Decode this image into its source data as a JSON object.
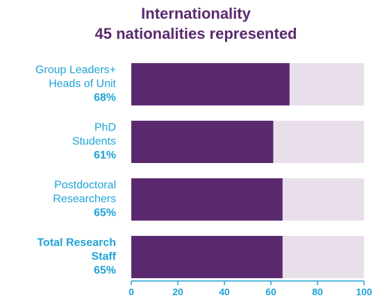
{
  "chart_data": {
    "type": "bar",
    "orientation": "horizontal",
    "title": [
      "Internationality",
      "45 nationalities represented"
    ],
    "categories": [
      [
        "Group Leaders+",
        "Heads of Unit"
      ],
      [
        "PhD",
        "Students"
      ],
      [
        "Postdoctoral",
        "Researchers"
      ],
      [
        "Total Research",
        "Staff"
      ]
    ],
    "values": [
      68,
      61,
      65,
      65
    ],
    "value_labels": [
      "68%",
      "61%",
      "65%",
      "65%"
    ],
    "color": "#5b2a6e",
    "track_color": "#e8dfeb",
    "xlim": [
      0,
      100
    ],
    "xticks": [
      0,
      20,
      40,
      60,
      80,
      100
    ]
  }
}
